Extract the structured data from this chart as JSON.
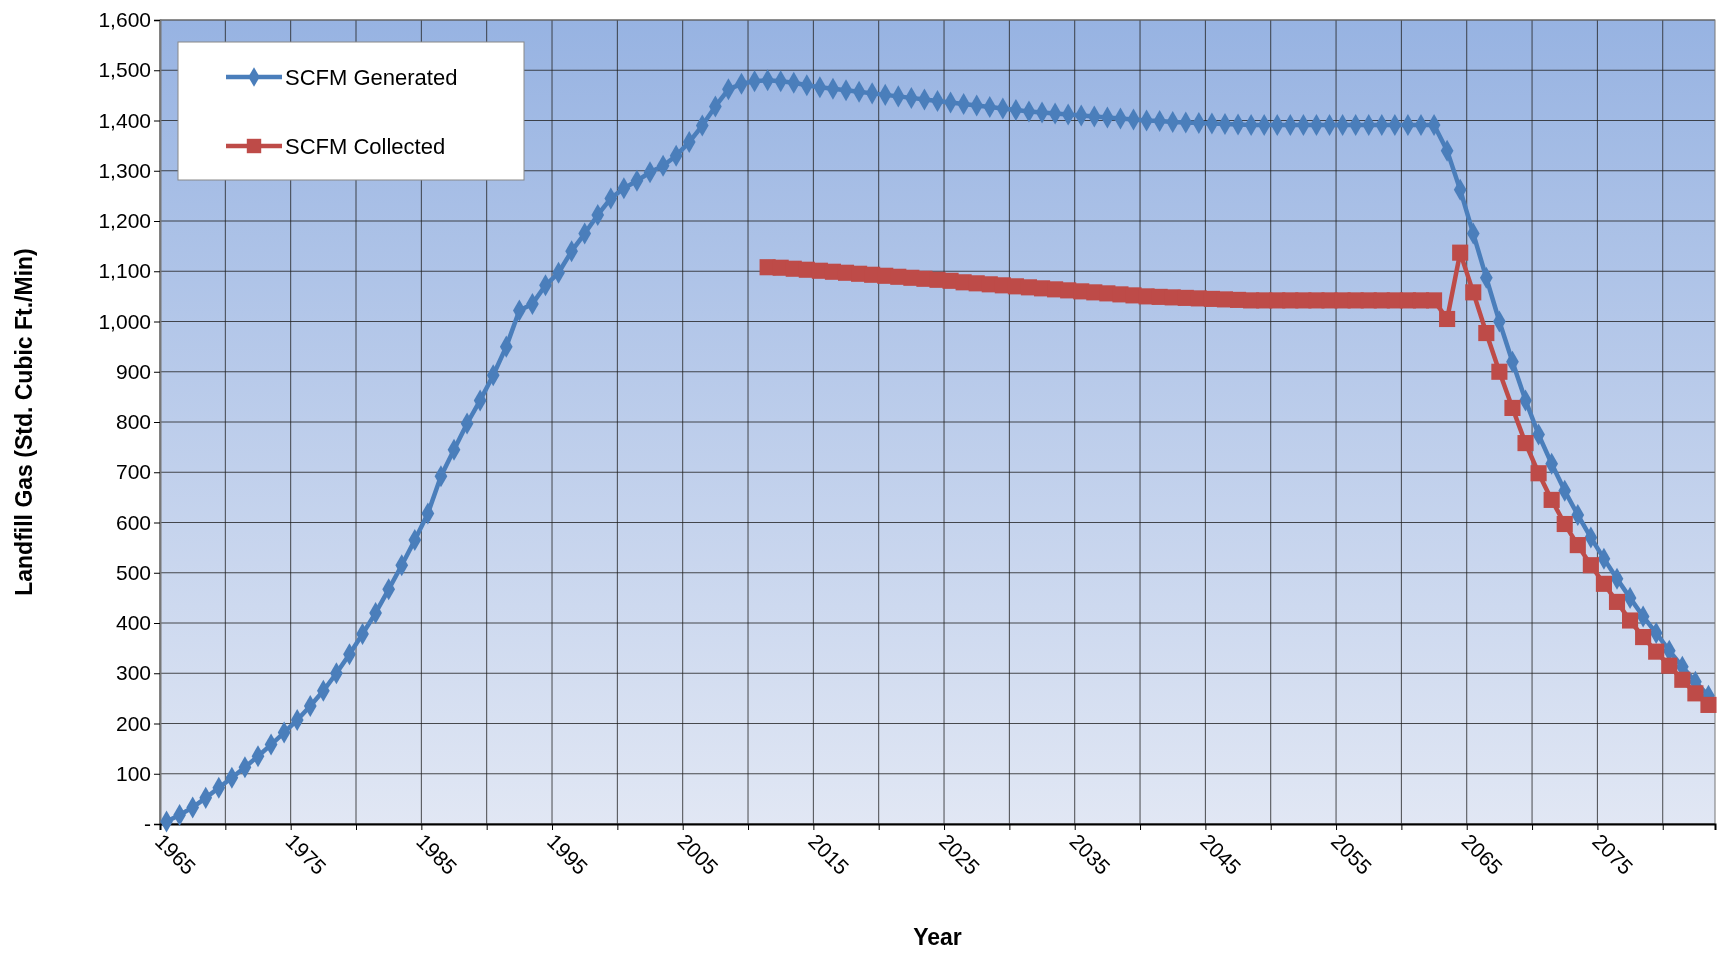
{
  "chart_data": {
    "type": "line",
    "xlabel": "Year",
    "ylabel": "Landfill Gas (Std. Cubic Ft./Min)",
    "xlim": [
      1964.5,
      2083.5
    ],
    "xticks": [
      {
        "value": 1964.5,
        "label": "1965"
      },
      {
        "value": 1969.5,
        "label": null
      },
      {
        "value": 1974.5,
        "label": "1975"
      },
      {
        "value": 1979.5,
        "label": null
      },
      {
        "value": 1984.5,
        "label": "1985"
      },
      {
        "value": 1989.5,
        "label": null
      },
      {
        "value": 1994.5,
        "label": "1995"
      },
      {
        "value": 1999.5,
        "label": null
      },
      {
        "value": 2004.5,
        "label": "2005"
      },
      {
        "value": 2009.5,
        "label": null
      },
      {
        "value": 2014.5,
        "label": "2015"
      },
      {
        "value": 2019.5,
        "label": null
      },
      {
        "value": 2024.5,
        "label": "2025"
      },
      {
        "value": 2029.5,
        "label": null
      },
      {
        "value": 2034.5,
        "label": "2035"
      },
      {
        "value": 2039.5,
        "label": null
      },
      {
        "value": 2044.5,
        "label": "2045"
      },
      {
        "value": 2049.5,
        "label": null
      },
      {
        "value": 2054.5,
        "label": "2055"
      },
      {
        "value": 2059.5,
        "label": null
      },
      {
        "value": 2064.5,
        "label": "2065"
      },
      {
        "value": 2069.5,
        "label": null
      },
      {
        "value": 2074.5,
        "label": "2075"
      },
      {
        "value": 2079.5,
        "label": null
      }
    ],
    "ylim": [
      0,
      1600
    ],
    "yticks": [
      {
        "value": 0,
        "label": "-"
      },
      100,
      200,
      300,
      400,
      500,
      600,
      700,
      800,
      900,
      {
        "value": 1000,
        "label": "1,000"
      },
      {
        "value": 1100,
        "label": "1,100"
      },
      {
        "value": 1200,
        "label": "1,200"
      },
      {
        "value": 1300,
        "label": "1,300"
      },
      {
        "value": 1400,
        "label": "1,400"
      },
      {
        "value": 1500,
        "label": "1,500"
      },
      {
        "value": 1600,
        "label": "1,600"
      }
    ],
    "grid": true,
    "legend": "top left",
    "series": [
      {
        "name": "SCFM Generated",
        "color": "#4a7ebb",
        "marker": "diamond",
        "x": [
          1965,
          1966,
          1967,
          1968,
          1969,
          1970,
          1971,
          1972,
          1973,
          1974,
          1975,
          1976,
          1977,
          1978,
          1979,
          1980,
          1981,
          1982,
          1983,
          1984,
          1985,
          1986,
          1987,
          1988,
          1989,
          1990,
          1991,
          1992,
          1993,
          1994,
          1995,
          1996,
          1997,
          1998,
          1999,
          2000,
          2001,
          2002,
          2003,
          2004,
          2005,
          2006,
          2007,
          2008,
          2009,
          2010,
          2011,
          2012,
          2013,
          2014,
          2015,
          2016,
          2017,
          2018,
          2019,
          2020,
          2021,
          2022,
          2023,
          2024,
          2025,
          2026,
          2027,
          2028,
          2029,
          2030,
          2031,
          2032,
          2033,
          2034,
          2035,
          2036,
          2037,
          2038,
          2039,
          2040,
          2041,
          2042,
          2043,
          2044,
          2045,
          2046,
          2047,
          2048,
          2049,
          2050,
          2051,
          2052,
          2053,
          2054,
          2055,
          2056,
          2057,
          2058,
          2059,
          2060,
          2061,
          2062,
          2063,
          2064,
          2065,
          2066,
          2067,
          2068,
          2069,
          2070,
          2071,
          2072,
          2073,
          2074,
          2075,
          2076,
          2077,
          2078,
          2079,
          2080,
          2081,
          2082,
          2083
        ],
        "values": [
          5,
          18,
          33,
          52,
          72,
          92,
          113,
          135,
          158,
          182,
          207,
          235,
          265,
          300,
          338,
          378,
          420,
          467,
          515,
          565,
          618,
          692,
          745,
          797,
          843,
          893,
          950,
          1022,
          1035,
          1072,
          1097,
          1140,
          1175,
          1212,
          1245,
          1265,
          1280,
          1297,
          1310,
          1330,
          1357,
          1390,
          1428,
          1462,
          1473,
          1478,
          1480,
          1478,
          1475,
          1470,
          1466,
          1463,
          1460,
          1457,
          1454,
          1451,
          1448,
          1445,
          1442,
          1439,
          1436,
          1433,
          1430,
          1427,
          1424,
          1421,
          1418,
          1416,
          1414,
          1412,
          1410,
          1408,
          1406,
          1404,
          1402,
          1400,
          1399,
          1397,
          1396,
          1395,
          1394,
          1393,
          1392,
          1391,
          1391,
          1391,
          1391,
          1391,
          1391,
          1391,
          1391,
          1391,
          1391,
          1391,
          1391,
          1391,
          1391,
          1391,
          1340,
          1262,
          1175,
          1087,
          1000,
          920,
          843,
          775,
          717,
          663,
          615,
          570,
          528,
          488,
          450,
          413,
          380,
          345,
          313,
          283,
          255
        ]
      },
      {
        "name": "SCFM Collected",
        "color": "#be4b48",
        "marker": "square",
        "x": [
          2011,
          2012,
          2013,
          2014,
          2015,
          2016,
          2017,
          2018,
          2019,
          2020,
          2021,
          2022,
          2023,
          2024,
          2025,
          2026,
          2027,
          2028,
          2029,
          2030,
          2031,
          2032,
          2033,
          2034,
          2035,
          2036,
          2037,
          2038,
          2039,
          2040,
          2041,
          2042,
          2043,
          2044,
          2045,
          2046,
          2047,
          2048,
          2049,
          2050,
          2051,
          2052,
          2053,
          2054,
          2055,
          2056,
          2057,
          2058,
          2059,
          2060,
          2061,
          2062,
          2063,
          2064,
          2065,
          2066,
          2067,
          2068,
          2069,
          2070,
          2071,
          2072,
          2073,
          2074,
          2075,
          2076,
          2077,
          2078,
          2079,
          2080,
          2081,
          2082,
          2083
        ],
        "values": [
          1108,
          1107,
          1105,
          1103,
          1101,
          1099,
          1097,
          1095,
          1093,
          1091,
          1089,
          1087,
          1085,
          1083,
          1081,
          1078,
          1076,
          1074,
          1072,
          1070,
          1068,
          1066,
          1064,
          1062,
          1060,
          1058,
          1056,
          1054,
          1052,
          1050,
          1049,
          1048,
          1047,
          1046,
          1045,
          1044,
          1043,
          1042,
          1042,
          1042,
          1042,
          1042,
          1042,
          1042,
          1042,
          1042,
          1042,
          1042,
          1042,
          1042,
          1042,
          1042,
          1005,
          1137,
          1058,
          977,
          900,
          828,
          758,
          698,
          645,
          597,
          555,
          515,
          478,
          442,
          405,
          372,
          343,
          315,
          287,
          260,
          237
        ]
      }
    ]
  }
}
